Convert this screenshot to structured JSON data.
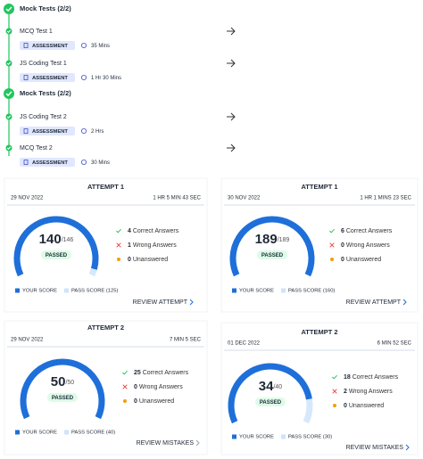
{
  "mock_tests": [
    {
      "header": "Mock Tests (2/2)",
      "items": [
        {
          "name": "MCQ Test 1",
          "badge": "ASSESSMENT",
          "duration": "35 Mins"
        },
        {
          "name": "JS Coding Test 1",
          "badge": "ASSESSMENT",
          "duration": "1 Hr 30 Mins"
        }
      ]
    },
    {
      "header": "Mock Tests (2/2)",
      "items": [
        {
          "name": "JS Coding Test 2",
          "badge": "ASSESSMENT",
          "duration": "2 Hrs"
        },
        {
          "name": "MCQ Test 2",
          "badge": "ASSESSMENT",
          "duration": "30 Mins"
        }
      ]
    }
  ],
  "attempts": [
    {
      "title": "ATTEMPT 1",
      "date": "29 NOV 2022",
      "duration": "1 HR 5 MIN 43 SEC",
      "score": 140,
      "total": {
        "value": 146,
        "label": "/146"
      },
      "status": "PASSED",
      "stats": [
        {
          "count": 4,
          "label": "Correct Answers"
        },
        {
          "count": 1,
          "label": "Wrong Answers"
        },
        {
          "count": 0,
          "label": "Unanswered"
        }
      ],
      "legend": [
        "YOUR SCORE",
        "PASS SCORE (125)"
      ],
      "action": "REVIEW ATTEMPT"
    },
    {
      "title": "ATTEMPT 1",
      "date": "30 NOV 2022",
      "duration": "1 HR 1 MINS 23 SEC",
      "score": 189,
      "total": {
        "value": 189,
        "label": "/189"
      },
      "status": "PASSED",
      "stats": [
        {
          "count": 6,
          "label": "Correct Answers"
        },
        {
          "count": 0,
          "label": "Wrong Answers"
        },
        {
          "count": 0,
          "label": "Unanswered"
        }
      ],
      "legend": [
        "YOUR SCORE",
        "PASS SCORE (160)"
      ],
      "action": "REVIEW ATTEMPT"
    },
    {
      "title": "ATTEMPT 2",
      "date": "29 NOV 2022",
      "duration": "7 MIN 5 SEC",
      "score": 50,
      "total": {
        "value": 50,
        "label": "/50"
      },
      "status": "PASSED",
      "stats": [
        {
          "count": 25,
          "label": "Correct Answers"
        },
        {
          "count": 0,
          "label": "Wrong Answers"
        },
        {
          "count": 0,
          "label": "Unanswered"
        }
      ],
      "legend": [
        "YOUR SCORE",
        "PASS SCORE (40)"
      ],
      "action": "REVIEW MISTAKES"
    },
    {
      "title": "ATTEMPT 2",
      "date": "01 DEC 2022",
      "duration": "6 MIN 52 SEC",
      "score": 34,
      "total": {
        "value": 40,
        "label": "/40"
      },
      "status": "PASSED",
      "stats": [
        {
          "count": 18,
          "label": "Correct Answers"
        },
        {
          "count": 2,
          "label": "Wrong Answers"
        },
        {
          "count": 0,
          "label": "Unanswered"
        }
      ],
      "legend": [
        "YOUR SCORE",
        "PASS SCORE (30)"
      ],
      "action": "REVIEW MISTAKES"
    }
  ]
}
